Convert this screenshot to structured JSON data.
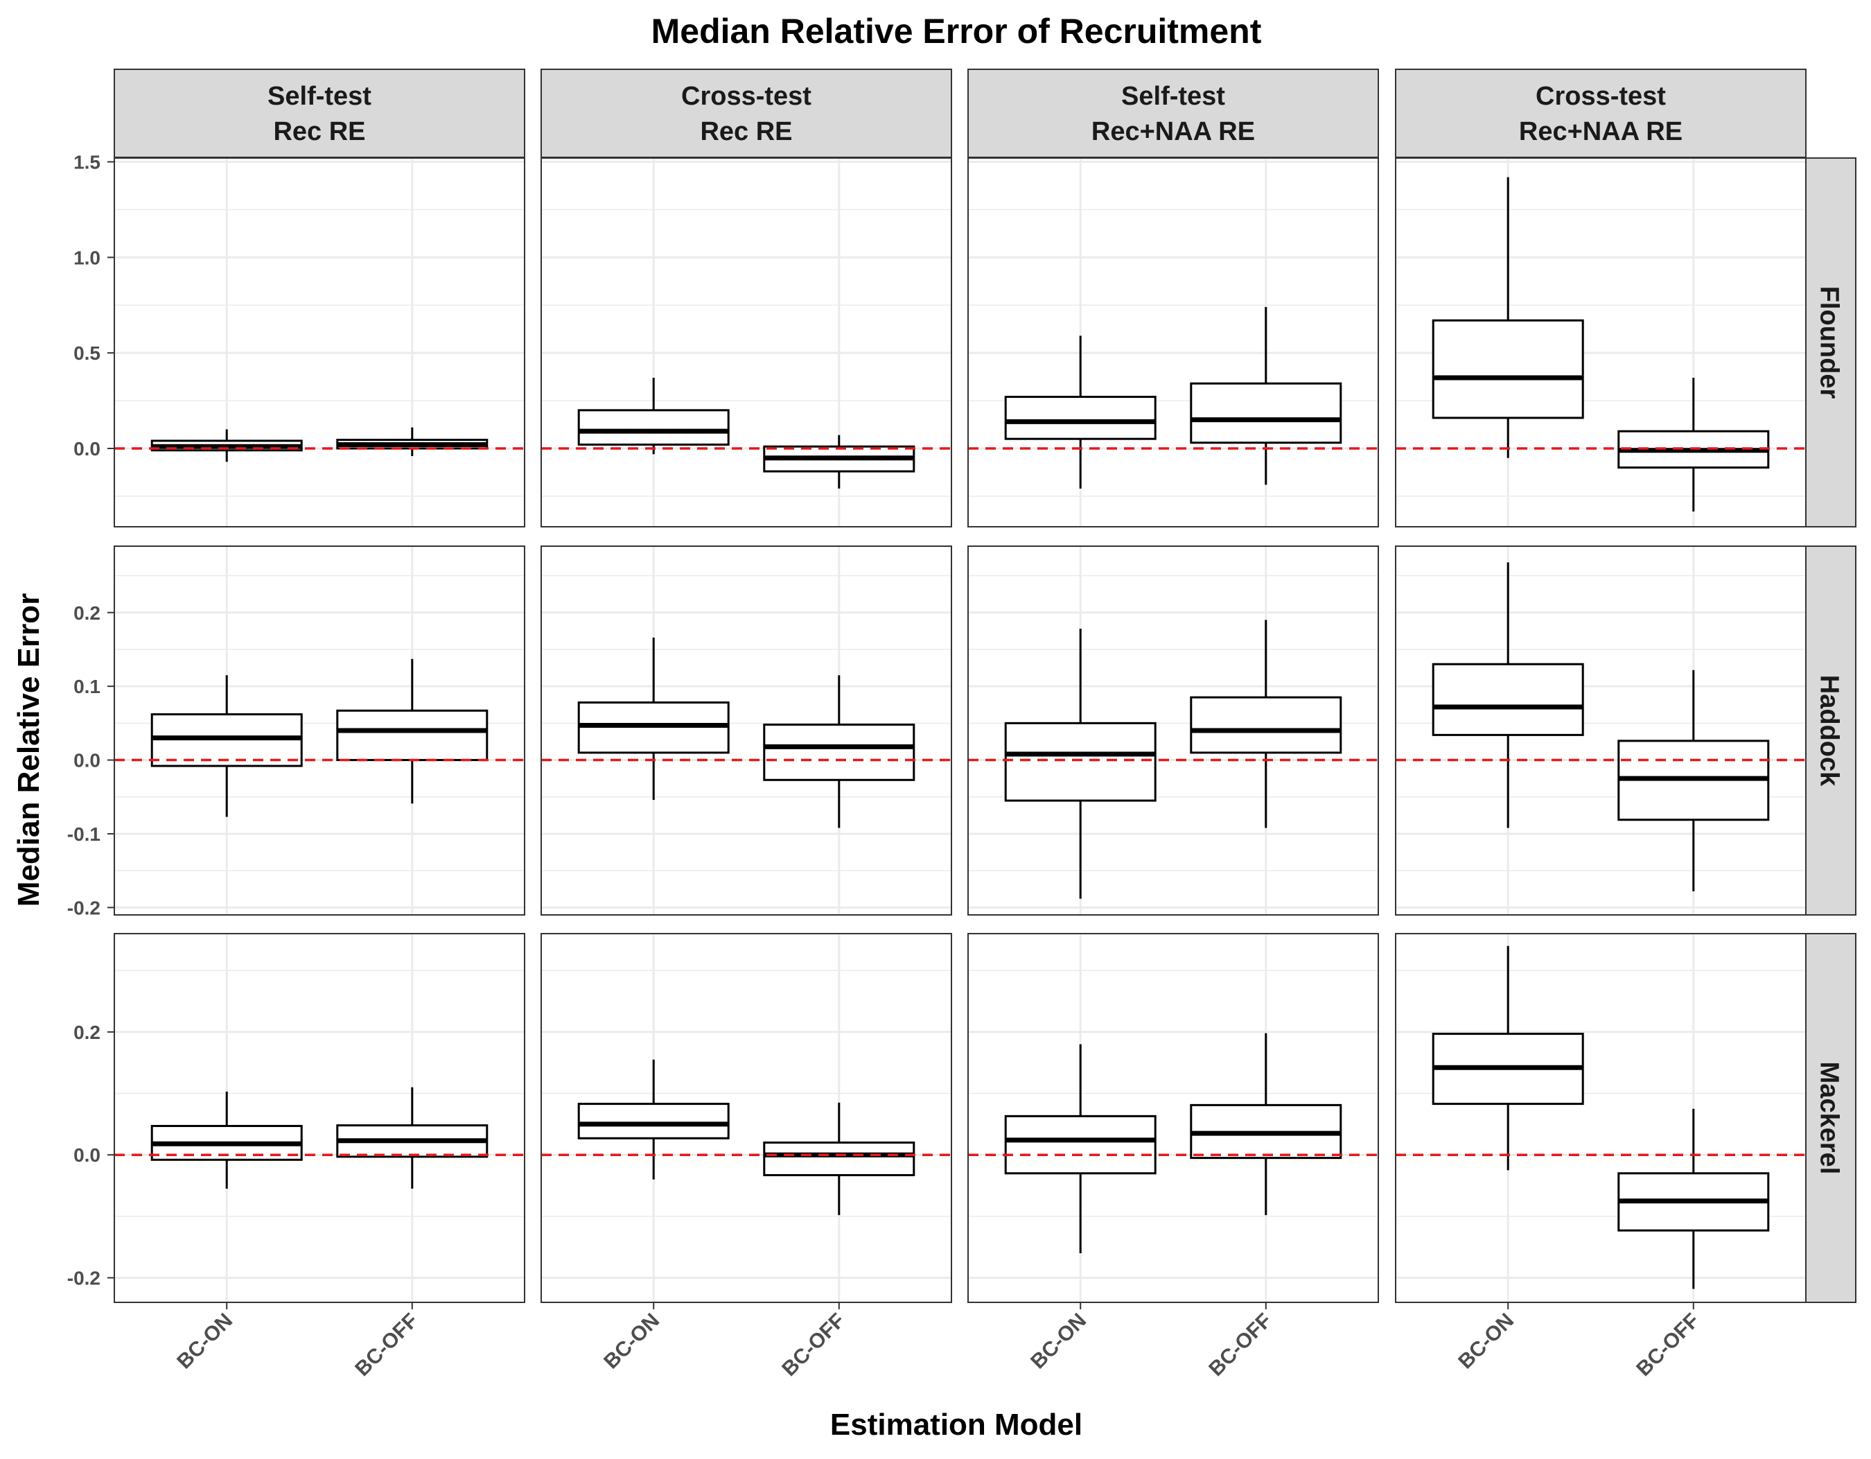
{
  "chart_data": {
    "type": "boxplot",
    "title": "Median Relative Error of Recruitment",
    "xlabel": "Estimation Model",
    "ylabel": "Median Relative Error",
    "categories": [
      "BC-ON",
      "BC-OFF"
    ],
    "columns": [
      {
        "line1": "Self-test",
        "line2": "Rec RE"
      },
      {
        "line1": "Cross-test",
        "line2": "Rec RE"
      },
      {
        "line1": "Self-test",
        "line2": "Rec+NAA RE"
      },
      {
        "line1": "Cross-test",
        "line2": "Rec+NAA RE"
      }
    ],
    "rows": [
      {
        "name": "Flounder",
        "ylim": [
          -0.41,
          1.52
        ],
        "ticks": [
          {
            "value": 0.0,
            "label": "0.0"
          },
          {
            "value": 0.5,
            "label": "0.5"
          },
          {
            "value": 1.0,
            "label": "1.0"
          },
          {
            "value": 1.5,
            "label": "1.5"
          }
        ],
        "panels": [
          [
            {
              "min": -0.07,
              "q1": -0.01,
              "median": 0.01,
              "q3": 0.04,
              "max": 0.1
            },
            {
              "min": -0.04,
              "q1": 0.0,
              "median": 0.02,
              "q3": 0.045,
              "max": 0.11
            }
          ],
          [
            {
              "min": -0.03,
              "q1": 0.02,
              "median": 0.09,
              "q3": 0.2,
              "max": 0.37
            },
            {
              "min": -0.21,
              "q1": -0.12,
              "median": -0.05,
              "q3": 0.01,
              "max": 0.07
            }
          ],
          [
            {
              "min": -0.21,
              "q1": 0.05,
              "median": 0.14,
              "q3": 0.27,
              "max": 0.59
            },
            {
              "min": -0.19,
              "q1": 0.03,
              "median": 0.15,
              "q3": 0.34,
              "max": 0.74
            }
          ],
          [
            {
              "min": -0.05,
              "q1": 0.16,
              "median": 0.37,
              "q3": 0.67,
              "max": 1.42
            },
            {
              "min": -0.33,
              "q1": -0.1,
              "median": -0.01,
              "q3": 0.09,
              "max": 0.37
            }
          ]
        ]
      },
      {
        "name": "Haddock",
        "ylim": [
          -0.21,
          0.29
        ],
        "ticks": [
          {
            "value": -0.2,
            "label": "-0.2"
          },
          {
            "value": -0.1,
            "label": "-0.1"
          },
          {
            "value": 0.0,
            "label": "0.0"
          },
          {
            "value": 0.1,
            "label": "0.1"
          },
          {
            "value": 0.2,
            "label": "0.2"
          }
        ],
        "panels": [
          [
            {
              "min": -0.077,
              "q1": -0.008,
              "median": 0.03,
              "q3": 0.062,
              "max": 0.115
            },
            {
              "min": -0.059,
              "q1": 0.0,
              "median": 0.04,
              "q3": 0.067,
              "max": 0.137
            }
          ],
          [
            {
              "min": -0.054,
              "q1": 0.01,
              "median": 0.047,
              "q3": 0.078,
              "max": 0.166
            },
            {
              "min": -0.092,
              "q1": -0.027,
              "median": 0.018,
              "q3": 0.048,
              "max": 0.115
            }
          ],
          [
            {
              "min": -0.188,
              "q1": -0.055,
              "median": 0.008,
              "q3": 0.05,
              "max": 0.178
            },
            {
              "min": -0.092,
              "q1": 0.01,
              "median": 0.04,
              "q3": 0.085,
              "max": 0.19
            }
          ],
          [
            {
              "min": -0.092,
              "q1": 0.034,
              "median": 0.072,
              "q3": 0.13,
              "max": 0.268
            },
            {
              "min": -0.178,
              "q1": -0.081,
              "median": -0.025,
              "q3": 0.026,
              "max": 0.122
            }
          ]
        ]
      },
      {
        "name": "Mackerel",
        "ylim": [
          -0.24,
          0.36
        ],
        "ticks": [
          {
            "value": -0.2,
            "label": "-0.2"
          },
          {
            "value": 0.0,
            "label": "0.0"
          },
          {
            "value": 0.2,
            "label": "0.2"
          }
        ],
        "panels": [
          [
            {
              "min": -0.055,
              "q1": -0.008,
              "median": 0.018,
              "q3": 0.047,
              "max": 0.103
            },
            {
              "min": -0.055,
              "q1": -0.003,
              "median": 0.023,
              "q3": 0.048,
              "max": 0.11
            }
          ],
          [
            {
              "min": -0.04,
              "q1": 0.027,
              "median": 0.05,
              "q3": 0.083,
              "max": 0.155
            },
            {
              "min": -0.098,
              "q1": -0.033,
              "median": 0.0,
              "q3": 0.02,
              "max": 0.085
            }
          ],
          [
            {
              "min": -0.16,
              "q1": -0.03,
              "median": 0.024,
              "q3": 0.063,
              "max": 0.18
            },
            {
              "min": -0.098,
              "q1": -0.005,
              "median": 0.035,
              "q3": 0.081,
              "max": 0.198
            }
          ],
          [
            {
              "min": -0.025,
              "q1": 0.083,
              "median": 0.142,
              "q3": 0.197,
              "max": 0.34
            },
            {
              "min": -0.218,
              "q1": -0.123,
              "median": -0.075,
              "q3": -0.03,
              "max": 0.075
            }
          ]
        ]
      }
    ],
    "reference_line": {
      "value": 0.0,
      "color": "#e41a1c",
      "style": "dashed"
    },
    "grid": true,
    "theme_colors": {
      "strip_fill": "#d9d9d9",
      "grid": "#ebebeb",
      "panel_border": "#333333",
      "box_fill": "#ffffff",
      "box_stroke": "#000000"
    }
  }
}
